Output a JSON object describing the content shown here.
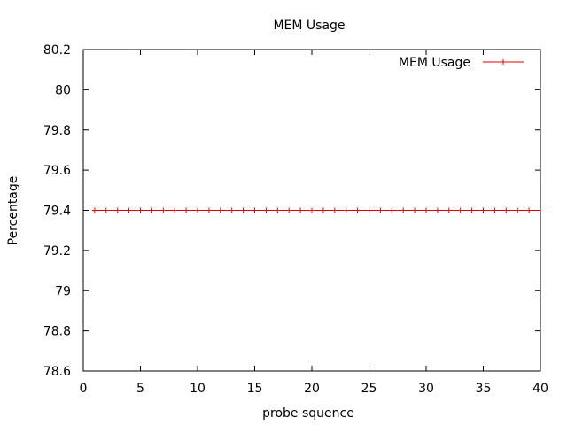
{
  "chart_data": {
    "type": "line",
    "title": "MEM Usage",
    "xlabel": "probe squence",
    "ylabel": "Percentage",
    "xlim": [
      0,
      40
    ],
    "ylim": [
      78.6,
      80.2
    ],
    "xticks": [
      0,
      5,
      10,
      15,
      20,
      25,
      30,
      35,
      40
    ],
    "yticks": [
      78.6,
      78.8,
      79,
      79.2,
      79.4,
      79.6,
      79.8,
      80,
      80.2
    ],
    "xtick_labels": [
      "0",
      "5",
      "10",
      "15",
      "20",
      "25",
      "30",
      "35",
      "40"
    ],
    "ytick_labels": [
      "78.6",
      "78.8",
      "79",
      "79.2",
      "79.4",
      "79.6",
      "79.8",
      "80",
      "80.2"
    ],
    "grid": false,
    "legend_position": "top-right",
    "series": [
      {
        "name": "MEM Usage",
        "color": "#e00000",
        "marker": "plus",
        "x": [
          1,
          2,
          3,
          4,
          5,
          6,
          7,
          8,
          9,
          10,
          11,
          12,
          13,
          14,
          15,
          16,
          17,
          18,
          19,
          20,
          21,
          22,
          23,
          24,
          25,
          26,
          27,
          28,
          29,
          30,
          31,
          32,
          33,
          34,
          35,
          36,
          37,
          38,
          39,
          40
        ],
        "y": [
          79.4,
          79.4,
          79.4,
          79.4,
          79.4,
          79.4,
          79.4,
          79.4,
          79.4,
          79.4,
          79.4,
          79.4,
          79.4,
          79.4,
          79.4,
          79.4,
          79.4,
          79.4,
          79.4,
          79.4,
          79.4,
          79.4,
          79.4,
          79.4,
          79.4,
          79.4,
          79.4,
          79.4,
          79.4,
          79.4,
          79.4,
          79.4,
          79.4,
          79.4,
          79.4,
          79.4,
          79.4,
          79.4,
          79.4,
          79.4
        ]
      }
    ]
  }
}
